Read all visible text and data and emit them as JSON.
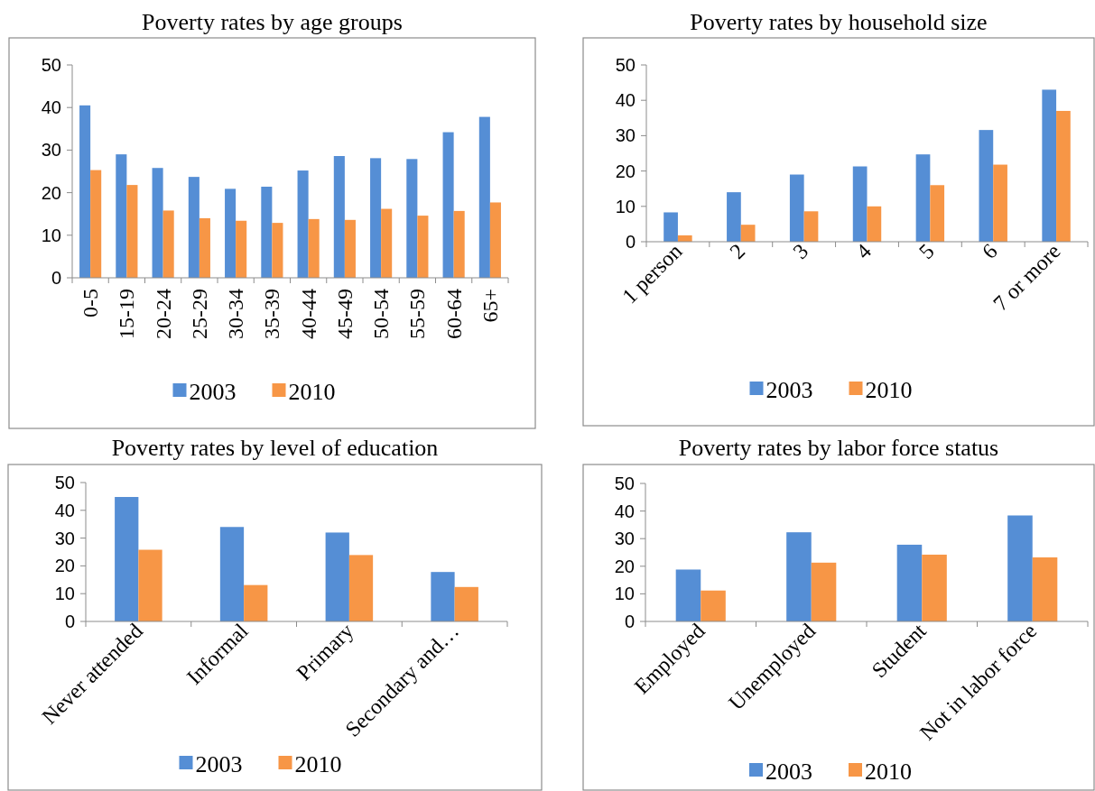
{
  "chart_data": [
    {
      "type": "bar",
      "title": "Poverty rates by age groups",
      "categories": [
        "0-5",
        "15-19",
        "20-24",
        "25-29",
        "30-34",
        "35-39",
        "40-44",
        "45-49",
        "50-54",
        "55-59",
        "60-64",
        "65+"
      ],
      "series": [
        {
          "name": "2003",
          "color": "#558ed5",
          "values": [
            40.5,
            29,
            25.8,
            23.7,
            20.9,
            21.4,
            25.2,
            28.6,
            28.1,
            27.9,
            34.2,
            37.8
          ]
        },
        {
          "name": "2010",
          "color": "#f79646",
          "values": [
            25.3,
            21.8,
            15.8,
            14.0,
            13.4,
            12.9,
            13.8,
            13.6,
            16.2,
            14.6,
            15.7,
            17.7
          ]
        }
      ],
      "ylim": [
        0,
        50
      ],
      "yticks": [
        0,
        10,
        20,
        30,
        40,
        50
      ],
      "grid": false,
      "legend": "bottom"
    },
    {
      "type": "bar",
      "title": "Poverty rates by household size",
      "categories": [
        "1 person",
        "2",
        "3",
        "4",
        "5",
        "6",
        "7 or more"
      ],
      "series": [
        {
          "name": "2003",
          "color": "#558ed5",
          "values": [
            8.3,
            14,
            19,
            21.3,
            24.7,
            31.6,
            43
          ]
        },
        {
          "name": "2010",
          "color": "#f79646",
          "values": [
            1.8,
            4.8,
            8.6,
            10,
            16,
            21.8,
            37
          ]
        }
      ],
      "ylim": [
        0,
        50
      ],
      "yticks": [
        0,
        10,
        20,
        30,
        40,
        50
      ],
      "grid": false,
      "legend": "bottom"
    },
    {
      "type": "bar",
      "title": "Poverty rates by level of education",
      "categories": [
        "Never attended",
        "Informal",
        "Primary",
        "Secondary and…"
      ],
      "series": [
        {
          "name": "2003",
          "color": "#558ed5",
          "values": [
            44.8,
            34,
            32,
            17.8
          ]
        },
        {
          "name": "2010",
          "color": "#f79646",
          "values": [
            25.8,
            13.1,
            23.9,
            12.4
          ]
        }
      ],
      "ylim": [
        0,
        50
      ],
      "yticks": [
        0,
        10,
        20,
        30,
        40,
        50
      ],
      "grid": false,
      "legend": "bottom"
    },
    {
      "type": "bar",
      "title": "Poverty rates by labor force status",
      "categories": [
        "Employed",
        "Unemployed",
        "Student",
        "Not in labor force"
      ],
      "series": [
        {
          "name": "2003",
          "color": "#558ed5",
          "values": [
            18.8,
            32.3,
            27.8,
            38.4
          ]
        },
        {
          "name": "2010",
          "color": "#f79646",
          "values": [
            11.2,
            21.3,
            24.2,
            23.2
          ]
        }
      ],
      "ylim": [
        0,
        50
      ],
      "yticks": [
        0,
        10,
        20,
        30,
        40,
        50
      ],
      "grid": false,
      "legend": "bottom"
    }
  ]
}
